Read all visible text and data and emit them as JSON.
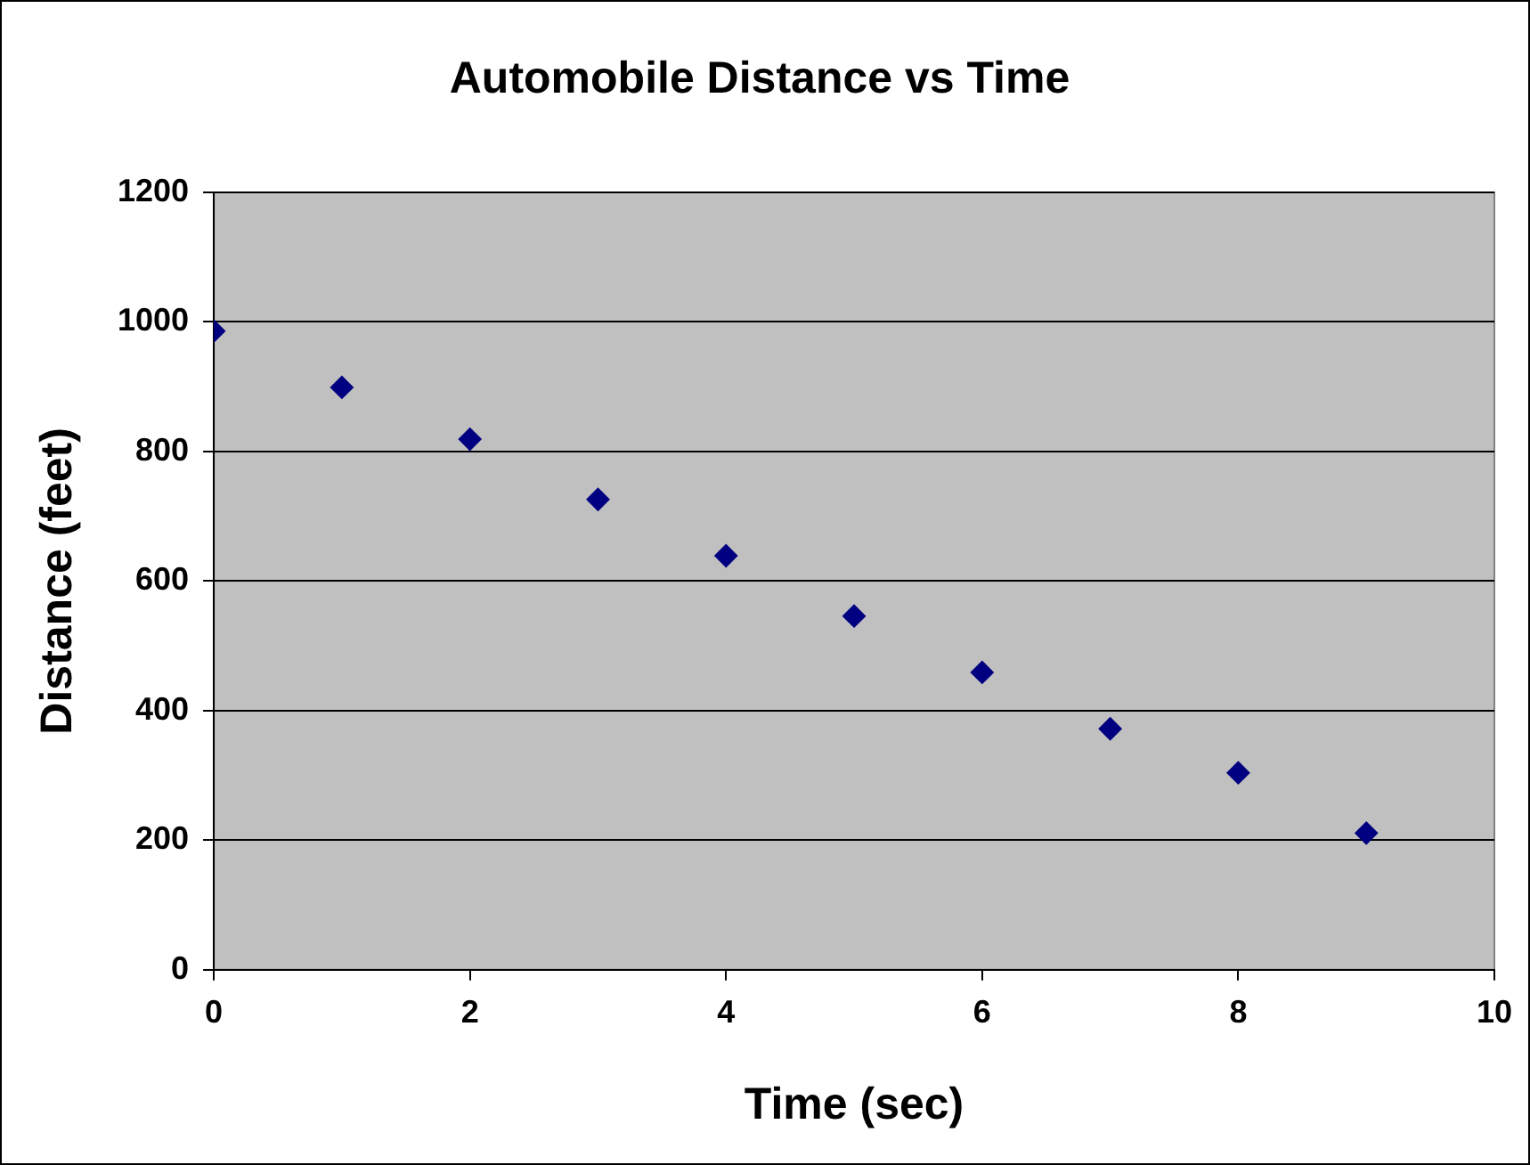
{
  "chart_data": {
    "type": "scatter",
    "title": "Automobile Distance vs Time",
    "xlabel": "Time (sec)",
    "ylabel": "Distance (feet)",
    "x": [
      0,
      1,
      2,
      3,
      4,
      5,
      6,
      7,
      8,
      9
    ],
    "series": [
      {
        "color": "#000080",
        "values": [
          986,
          899,
          819,
          726,
          639,
          546,
          459,
          372,
          304,
          211
        ]
      }
    ],
    "xlim": [
      0,
      10
    ],
    "xticks": [
      0,
      2,
      4,
      6,
      8,
      10
    ],
    "ylim": [
      0,
      1200
    ],
    "yticks": [
      0,
      200,
      400,
      600,
      800,
      1000,
      1200
    ],
    "grid": "y",
    "legend": false,
    "marker": "diamond"
  }
}
